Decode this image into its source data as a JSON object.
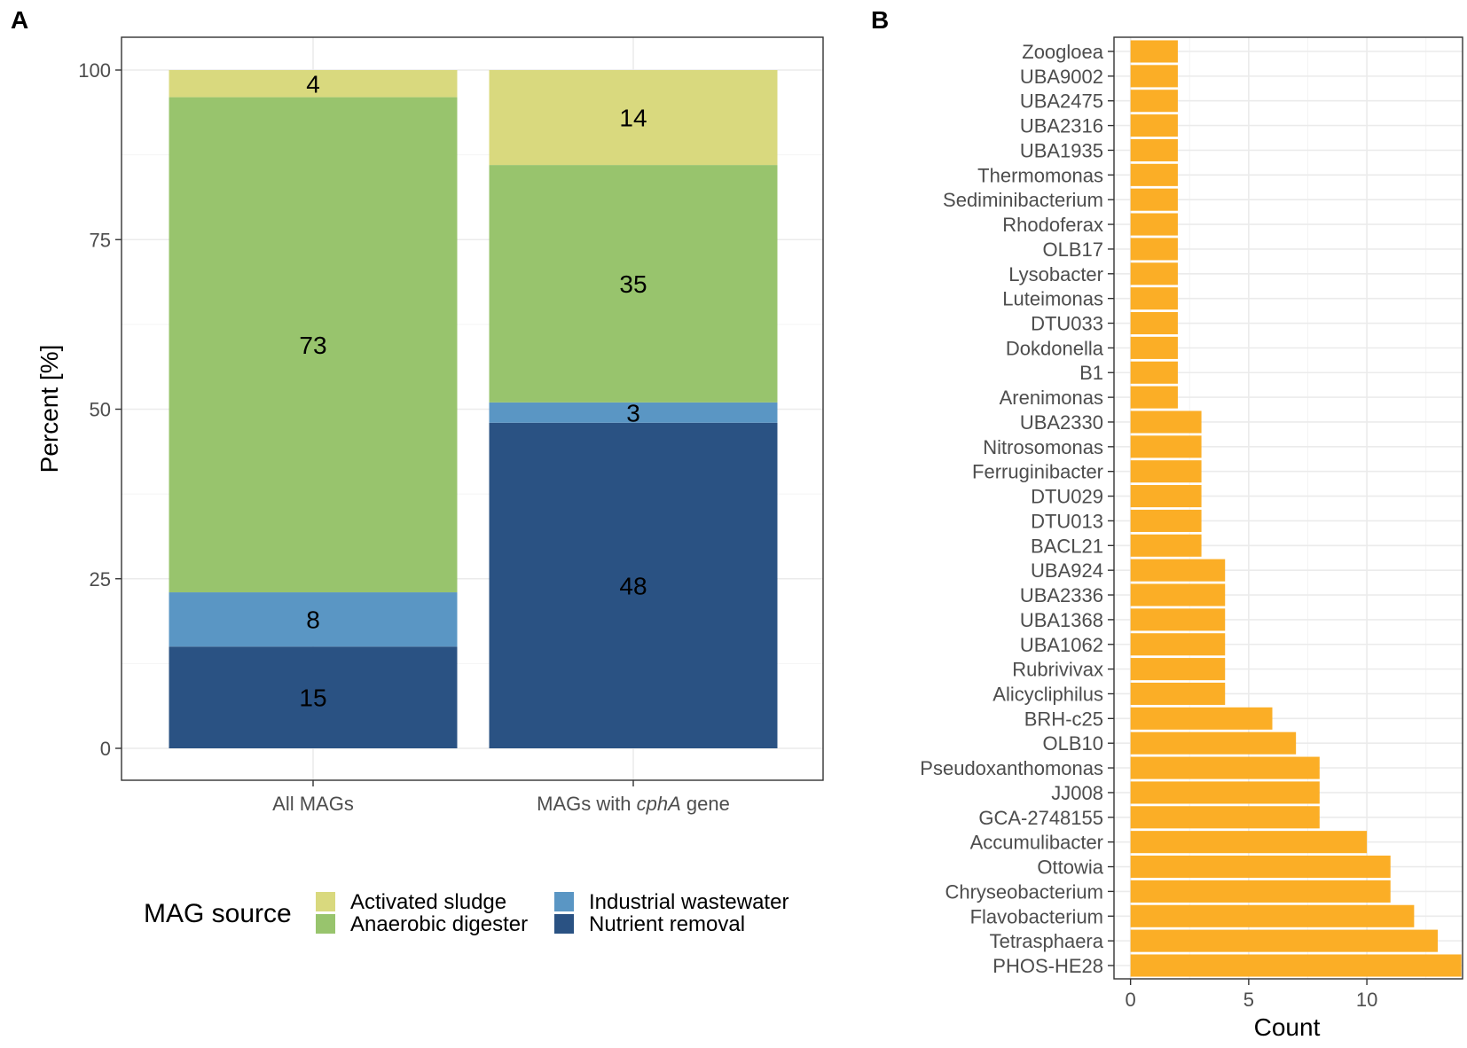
{
  "colors": {
    "activated_sludge": "#d9d97e",
    "anaerobic_digester": "#98c46d",
    "industrial_wastewater": "#5a96c4",
    "nutrient_removal": "#2a5283",
    "count_bar": "#fbae26"
  },
  "chart_data": [
    {
      "panel": "A",
      "type": "bar",
      "stacked": true,
      "categories": [
        "All MAGs",
        "MAGs with cphA gene"
      ],
      "category_display": [
        {
          "prefix": "All MAGs",
          "italic": "",
          "suffix": ""
        },
        {
          "prefix": "MAGs with ",
          "italic": "cphA",
          "suffix": " gene"
        }
      ],
      "series": [
        {
          "name": "Nutrient removal",
          "key": "nutrient_removal",
          "values": [
            15,
            48
          ]
        },
        {
          "name": "Industrial wastewater",
          "key": "industrial_wastewater",
          "values": [
            8,
            3
          ]
        },
        {
          "name": "Anaerobic digester",
          "key": "anaerobic_digester",
          "values": [
            73,
            35
          ]
        },
        {
          "name": "Activated sludge",
          "key": "activated_sludge",
          "values": [
            4,
            14
          ]
        }
      ],
      "segment_labels": [
        [
          "15",
          "8",
          "73",
          "4"
        ],
        [
          "48",
          "3",
          "35",
          "14"
        ]
      ],
      "ylabel": "Percent [%]",
      "xlabel": "",
      "ylim": [
        0,
        100
      ],
      "yticks": [
        0,
        25,
        50,
        75,
        100
      ],
      "ytick_labels": [
        "0",
        "25",
        "50",
        "75",
        "100"
      ],
      "legend": {
        "title": "MAG source",
        "position": "bottom",
        "items": [
          {
            "label": "Activated sludge",
            "key": "activated_sludge"
          },
          {
            "label": "Anaerobic digester",
            "key": "anaerobic_digester"
          },
          {
            "label": "Industrial wastewater",
            "key": "industrial_wastewater"
          },
          {
            "label": "Nutrient removal",
            "key": "nutrient_removal"
          }
        ]
      },
      "grid": true
    },
    {
      "panel": "B",
      "type": "bar",
      "orientation": "horizontal",
      "categories": [
        "Zoogloea",
        "UBA9002",
        "UBA2475",
        "UBA2316",
        "UBA1935",
        "Thermomonas",
        "Sediminibacterium",
        "Rhodoferax",
        "OLB17",
        "Lysobacter",
        "Luteimonas",
        "DTU033",
        "Dokdonella",
        "B1",
        "Arenimonas",
        "UBA2330",
        "Nitrosomonas",
        "Ferruginibacter",
        "DTU029",
        "DTU013",
        "BACL21",
        "UBA924",
        "UBA2336",
        "UBA1368",
        "UBA1062",
        "Rubrivivax",
        "Alicycliphilus",
        "BRH-c25",
        "OLB10",
        "Pseudoxanthomonas",
        "JJ008",
        "GCA-2748155",
        "Accumulibacter",
        "Ottowia",
        "Chryseobacterium",
        "Flavobacterium",
        "Tetrasphaera",
        "PHOS-HE28"
      ],
      "values": [
        2,
        2,
        2,
        2,
        2,
        2,
        2,
        2,
        2,
        2,
        2,
        2,
        2,
        2,
        2,
        3,
        3,
        3,
        3,
        3,
        3,
        4,
        4,
        4,
        4,
        4,
        4,
        6,
        7,
        8,
        8,
        8,
        10,
        11,
        11,
        12,
        13,
        14
      ],
      "xlabel": "Count",
      "ylabel": "",
      "xlim": [
        -0.7,
        14.05
      ],
      "xticks": [
        0,
        5,
        10
      ],
      "xtick_labels": [
        "0",
        "5",
        "10"
      ],
      "grid": true
    }
  ],
  "panel_labels": {
    "a": "A",
    "b": "B"
  }
}
